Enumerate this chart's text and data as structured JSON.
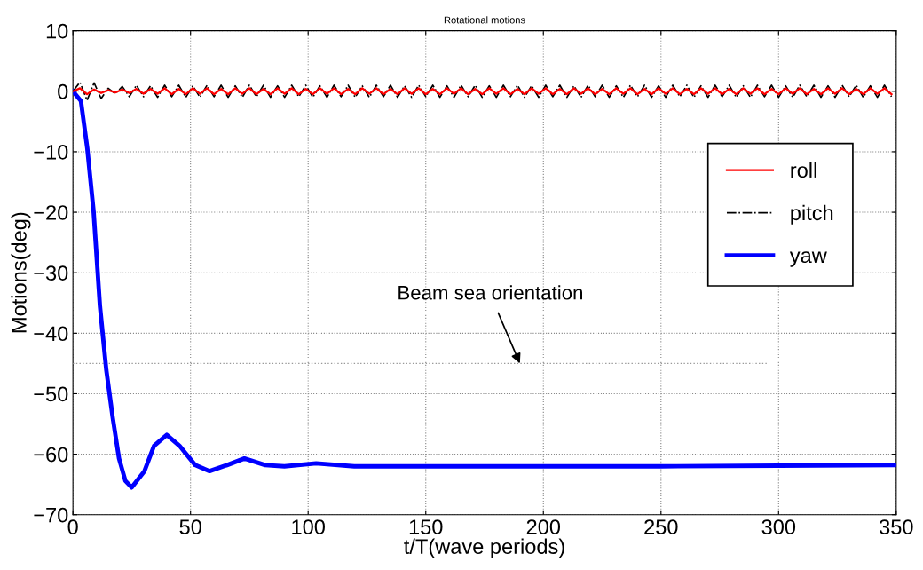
{
  "chart_data": {
    "type": "line",
    "title": "Rotational motions",
    "xlabel": "t/T(wave periods)",
    "ylabel": "Motions(deg)",
    "xlim": [
      0,
      350
    ],
    "xticks": [
      0,
      50,
      100,
      150,
      200,
      250,
      300,
      350
    ],
    "ylim": [
      -70,
      10
    ],
    "yticks": [
      -70,
      -60,
      -50,
      -40,
      -30,
      -20,
      -10,
      0,
      10
    ],
    "grid": true,
    "legend": "right",
    "annotations": [
      {
        "text": "Beam sea orientation",
        "x": 190,
        "y": -45
      }
    ],
    "series": [
      {
        "name": "roll",
        "color": "#ff0000",
        "line_style": "solid",
        "x": [
          0,
          3,
          6,
          9,
          12,
          15,
          18,
          21,
          24,
          27,
          30,
          33,
          36,
          39,
          42,
          45,
          48,
          51,
          54,
          57,
          60,
          63,
          66,
          69,
          72,
          75,
          78,
          81,
          84,
          87,
          90,
          93,
          96,
          99,
          102,
          105,
          108,
          111,
          114,
          117,
          120,
          123,
          126,
          129,
          132,
          135,
          138,
          141,
          144,
          147,
          150,
          153,
          156,
          159,
          162,
          165,
          168,
          171,
          174,
          177,
          180,
          183,
          186,
          189,
          192,
          195,
          198,
          201,
          204,
          207,
          210,
          213,
          216,
          219,
          222,
          225,
          228,
          231,
          234,
          237,
          240,
          243,
          246,
          249,
          252,
          255,
          258,
          261,
          264,
          267,
          270,
          273,
          276,
          279,
          282,
          285,
          288,
          291,
          294,
          297,
          300,
          303,
          306,
          309,
          312,
          315,
          318,
          321,
          324,
          327,
          330,
          333,
          336,
          339,
          342,
          345,
          348
        ],
        "values": [
          0,
          0.5,
          -0.5,
          0.3,
          -0.3,
          0.2,
          -0.2,
          0.3,
          -0.3,
          0.4,
          -0.4,
          0.4,
          -0.4,
          0.5,
          -0.5,
          0.4,
          -0.5,
          0.5,
          -0.4,
          0.5,
          -0.5,
          0.4,
          -0.5,
          0.5,
          -0.4,
          0.5,
          -0.5,
          0.4,
          -0.5,
          0.5,
          -0.4,
          0.5,
          -0.5,
          0.4,
          -0.5,
          0.5,
          -0.4,
          0.5,
          -0.5,
          0.4,
          -0.5,
          0.5,
          -0.4,
          0.5,
          -0.5,
          0.4,
          -0.5,
          0.5,
          -0.4,
          0.5,
          -0.5,
          0.4,
          -0.5,
          0.5,
          -0.4,
          0.5,
          -0.5,
          0.4,
          -0.5,
          0.5,
          -0.4,
          0.5,
          -0.5,
          0.4,
          -0.5,
          0.5,
          -0.4,
          0.5,
          -0.5,
          0.4,
          -0.5,
          0.5,
          -0.4,
          0.5,
          -0.5,
          0.4,
          -0.5,
          0.5,
          -0.4,
          0.5,
          -0.5,
          0.4,
          -0.5,
          0.5,
          -0.4,
          0.5,
          -0.5,
          0.4,
          -0.5,
          0.5,
          -0.4,
          0.5,
          -0.5,
          0.4,
          -0.5,
          0.5,
          -0.4,
          0.5,
          -0.5,
          0.4,
          -0.5,
          0.5,
          -0.4,
          0.5,
          -0.5,
          0.4,
          -0.5,
          0.5,
          -0.4,
          0.5,
          -0.5,
          0.4,
          -0.5,
          0.5,
          -0.4,
          0.5,
          -0.5
        ]
      },
      {
        "name": "pitch",
        "color": "#000000",
        "line_style": "dashdot",
        "x": [
          0,
          3,
          6,
          9,
          12,
          15,
          18,
          21,
          24,
          27,
          30,
          33,
          36,
          39,
          42,
          45,
          48,
          51,
          54,
          57,
          60,
          63,
          66,
          69,
          72,
          75,
          78,
          81,
          84,
          87,
          90,
          93,
          96,
          99,
          102,
          105,
          108,
          111,
          114,
          117,
          120,
          123,
          126,
          129,
          132,
          135,
          138,
          141,
          144,
          147,
          150,
          153,
          156,
          159,
          162,
          165,
          168,
          171,
          174,
          177,
          180,
          183,
          186,
          189,
          192,
          195,
          198,
          201,
          204,
          207,
          210,
          213,
          216,
          219,
          222,
          225,
          228,
          231,
          234,
          237,
          240,
          243,
          246,
          249,
          252,
          255,
          258,
          261,
          264,
          267,
          270,
          273,
          276,
          279,
          282,
          285,
          288,
          291,
          294,
          297,
          300,
          303,
          306,
          309,
          312,
          315,
          318,
          321,
          324,
          327,
          330,
          333,
          336,
          339,
          342,
          345,
          348
        ],
        "values": [
          0,
          1.5,
          -1.5,
          1.4,
          -1.2,
          0.5,
          -0.4,
          0.8,
          -0.9,
          1,
          -0.9,
          0.9,
          -1,
          1,
          -0.9,
          1,
          -1,
          0.9,
          -1,
          1,
          -0.9,
          1,
          -1,
          0.9,
          -1,
          1,
          -0.9,
          1,
          -1,
          0.9,
          -1,
          1,
          -0.9,
          1,
          -1,
          0.9,
          -1,
          1,
          -0.9,
          1,
          -1,
          0.9,
          -1,
          1,
          -0.9,
          1,
          -1,
          0.9,
          -1,
          1,
          -0.9,
          1,
          -1,
          0.9,
          -1,
          1,
          -0.9,
          1,
          -1,
          0.9,
          -1,
          1,
          -0.9,
          1,
          -1,
          0.9,
          -1,
          1,
          -0.9,
          1,
          -1,
          0.9,
          -1,
          1,
          -0.9,
          1,
          -1,
          0.9,
          -1,
          1,
          -0.9,
          1,
          -1,
          0.9,
          -1,
          1,
          -0.9,
          1,
          -1,
          0.9,
          -1,
          1,
          -0.9,
          1,
          -1,
          0.9,
          -1,
          1,
          -0.9,
          1,
          -1,
          0.9,
          -1,
          1,
          -0.9,
          1,
          -1,
          0.9,
          -1,
          1,
          -0.9,
          1,
          -1,
          0.9,
          -1,
          1,
          -0.9
        ]
      },
      {
        "name": "yaw",
        "color": "#0000ff",
        "line_style": "solid",
        "x": [
          0,
          3.4,
          6.1,
          8.8,
          11.5,
          14.2,
          16.9,
          19.6,
          22.3,
          25,
          30.4,
          34.5,
          39.9,
          45.3,
          52,
          58.1,
          65.5,
          72.9,
          81.8,
          89.9,
          103.4,
          119.6,
          150,
          200,
          250,
          300,
          350
        ],
        "values": [
          0,
          -1.6,
          -9.4,
          -19.9,
          -35.6,
          -46.1,
          -53.9,
          -60.7,
          -64.4,
          -65.5,
          -62.8,
          -58.6,
          -56.8,
          -58.6,
          -61.8,
          -62.8,
          -61.8,
          -60.7,
          -61.8,
          -62,
          -61.5,
          -62,
          -62,
          -62,
          -62,
          -61.9,
          -61.8
        ]
      },
      {
        "color": "#999999",
        "line_style": "dotted",
        "x": [
          0,
          295
        ],
        "values": [
          -45,
          -45
        ]
      }
    ]
  }
}
